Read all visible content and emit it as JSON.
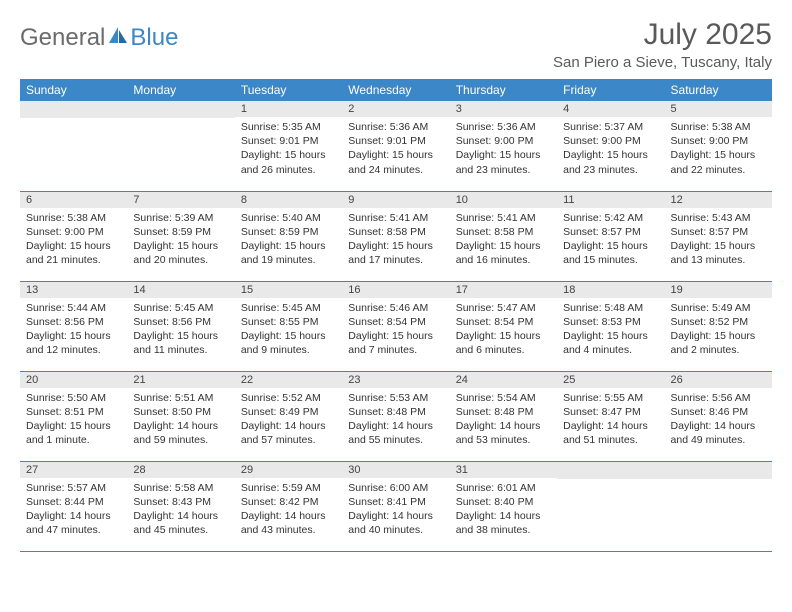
{
  "logo": {
    "text1": "General",
    "text2": "Blue"
  },
  "title": "July 2025",
  "location": "San Piero a Sieve, Tuscany, Italy",
  "colors": {
    "header_bg": "#3b87c8",
    "header_text": "#ffffff",
    "daynum_bg": "#e9e9e9",
    "row_border": "#3b87c8",
    "logo_gray": "#6b6b6b",
    "logo_blue": "#3b87c8"
  },
  "weekdays": [
    "Sunday",
    "Monday",
    "Tuesday",
    "Wednesday",
    "Thursday",
    "Friday",
    "Saturday"
  ],
  "weeks": [
    [
      null,
      null,
      {
        "n": "1",
        "sr": "5:35 AM",
        "ss": "9:01 PM",
        "dl": "15 hours and 26 minutes."
      },
      {
        "n": "2",
        "sr": "5:36 AM",
        "ss": "9:01 PM",
        "dl": "15 hours and 24 minutes."
      },
      {
        "n": "3",
        "sr": "5:36 AM",
        "ss": "9:00 PM",
        "dl": "15 hours and 23 minutes."
      },
      {
        "n": "4",
        "sr": "5:37 AM",
        "ss": "9:00 PM",
        "dl": "15 hours and 23 minutes."
      },
      {
        "n": "5",
        "sr": "5:38 AM",
        "ss": "9:00 PM",
        "dl": "15 hours and 22 minutes."
      }
    ],
    [
      {
        "n": "6",
        "sr": "5:38 AM",
        "ss": "9:00 PM",
        "dl": "15 hours and 21 minutes."
      },
      {
        "n": "7",
        "sr": "5:39 AM",
        "ss": "8:59 PM",
        "dl": "15 hours and 20 minutes."
      },
      {
        "n": "8",
        "sr": "5:40 AM",
        "ss": "8:59 PM",
        "dl": "15 hours and 19 minutes."
      },
      {
        "n": "9",
        "sr": "5:41 AM",
        "ss": "8:58 PM",
        "dl": "15 hours and 17 minutes."
      },
      {
        "n": "10",
        "sr": "5:41 AM",
        "ss": "8:58 PM",
        "dl": "15 hours and 16 minutes."
      },
      {
        "n": "11",
        "sr": "5:42 AM",
        "ss": "8:57 PM",
        "dl": "15 hours and 15 minutes."
      },
      {
        "n": "12",
        "sr": "5:43 AM",
        "ss": "8:57 PM",
        "dl": "15 hours and 13 minutes."
      }
    ],
    [
      {
        "n": "13",
        "sr": "5:44 AM",
        "ss": "8:56 PM",
        "dl": "15 hours and 12 minutes."
      },
      {
        "n": "14",
        "sr": "5:45 AM",
        "ss": "8:56 PM",
        "dl": "15 hours and 11 minutes."
      },
      {
        "n": "15",
        "sr": "5:45 AM",
        "ss": "8:55 PM",
        "dl": "15 hours and 9 minutes."
      },
      {
        "n": "16",
        "sr": "5:46 AM",
        "ss": "8:54 PM",
        "dl": "15 hours and 7 minutes."
      },
      {
        "n": "17",
        "sr": "5:47 AM",
        "ss": "8:54 PM",
        "dl": "15 hours and 6 minutes."
      },
      {
        "n": "18",
        "sr": "5:48 AM",
        "ss": "8:53 PM",
        "dl": "15 hours and 4 minutes."
      },
      {
        "n": "19",
        "sr": "5:49 AM",
        "ss": "8:52 PM",
        "dl": "15 hours and 2 minutes."
      }
    ],
    [
      {
        "n": "20",
        "sr": "5:50 AM",
        "ss": "8:51 PM",
        "dl": "15 hours and 1 minute."
      },
      {
        "n": "21",
        "sr": "5:51 AM",
        "ss": "8:50 PM",
        "dl": "14 hours and 59 minutes."
      },
      {
        "n": "22",
        "sr": "5:52 AM",
        "ss": "8:49 PM",
        "dl": "14 hours and 57 minutes."
      },
      {
        "n": "23",
        "sr": "5:53 AM",
        "ss": "8:48 PM",
        "dl": "14 hours and 55 minutes."
      },
      {
        "n": "24",
        "sr": "5:54 AM",
        "ss": "8:48 PM",
        "dl": "14 hours and 53 minutes."
      },
      {
        "n": "25",
        "sr": "5:55 AM",
        "ss": "8:47 PM",
        "dl": "14 hours and 51 minutes."
      },
      {
        "n": "26",
        "sr": "5:56 AM",
        "ss": "8:46 PM",
        "dl": "14 hours and 49 minutes."
      }
    ],
    [
      {
        "n": "27",
        "sr": "5:57 AM",
        "ss": "8:44 PM",
        "dl": "14 hours and 47 minutes."
      },
      {
        "n": "28",
        "sr": "5:58 AM",
        "ss": "8:43 PM",
        "dl": "14 hours and 45 minutes."
      },
      {
        "n": "29",
        "sr": "5:59 AM",
        "ss": "8:42 PM",
        "dl": "14 hours and 43 minutes."
      },
      {
        "n": "30",
        "sr": "6:00 AM",
        "ss": "8:41 PM",
        "dl": "14 hours and 40 minutes."
      },
      {
        "n": "31",
        "sr": "6:01 AM",
        "ss": "8:40 PM",
        "dl": "14 hours and 38 minutes."
      },
      null,
      null
    ]
  ],
  "labels": {
    "sunrise": "Sunrise: ",
    "sunset": "Sunset: ",
    "daylight": "Daylight: "
  }
}
